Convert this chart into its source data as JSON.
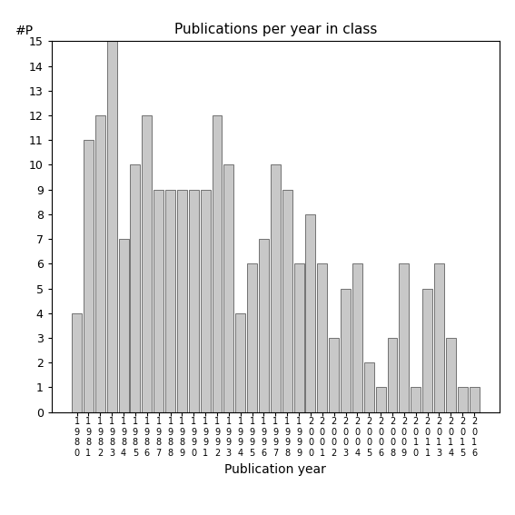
{
  "title": "Publications per year in class",
  "xlabel": "Publication year",
  "ylabel": "#P",
  "bar_color": "#c8c8c8",
  "edge_color": "#606060",
  "categories": [
    "1\n9\n8\n0",
    "1\n9\n8\n1",
    "1\n9\n8\n2",
    "1\n9\n8\n3",
    "1\n9\n8\n4",
    "1\n9\n8\n5",
    "1\n9\n8\n6",
    "1\n9\n8\n7",
    "1\n9\n8\n8",
    "1\n9\n8\n9",
    "1\n9\n9\n0",
    "1\n9\n9\n1",
    "1\n9\n9\n2",
    "1\n9\n9\n3",
    "1\n9\n9\n4",
    "1\n9\n9\n5",
    "1\n9\n9\n6",
    "1\n9\n9\n7",
    "1\n9\n9\n8",
    "1\n9\n9\n9",
    "2\n0\n0\n0",
    "2\n0\n0\n1",
    "2\n0\n0\n2",
    "2\n0\n0\n3",
    "2\n0\n0\n4",
    "2\n0\n0\n5",
    "2\n0\n0\n6",
    "2\n0\n0\n8",
    "2\n0\n0\n9",
    "2\n0\n1\n0",
    "2\n0\n1\n1",
    "2\n0\n1\n3",
    "2\n0\n1\n4",
    "2\n0\n1\n5",
    "2\n0\n1\n6"
  ],
  "values": [
    4,
    11,
    12,
    15,
    7,
    10,
    12,
    9,
    9,
    9,
    9,
    9,
    12,
    10,
    4,
    6,
    7,
    10,
    9,
    6,
    8,
    6,
    3,
    5,
    6,
    2,
    1,
    3,
    6,
    1,
    5,
    6,
    3,
    1,
    1
  ],
  "ylim": [
    0,
    15
  ],
  "yticks": [
    0,
    1,
    2,
    3,
    4,
    5,
    6,
    7,
    8,
    9,
    10,
    11,
    12,
    13,
    14,
    15
  ],
  "background_color": "#ffffff",
  "title_fontsize": 11,
  "axis_label_fontsize": 10,
  "tick_fontsize": 9,
  "xtick_fontsize": 7
}
